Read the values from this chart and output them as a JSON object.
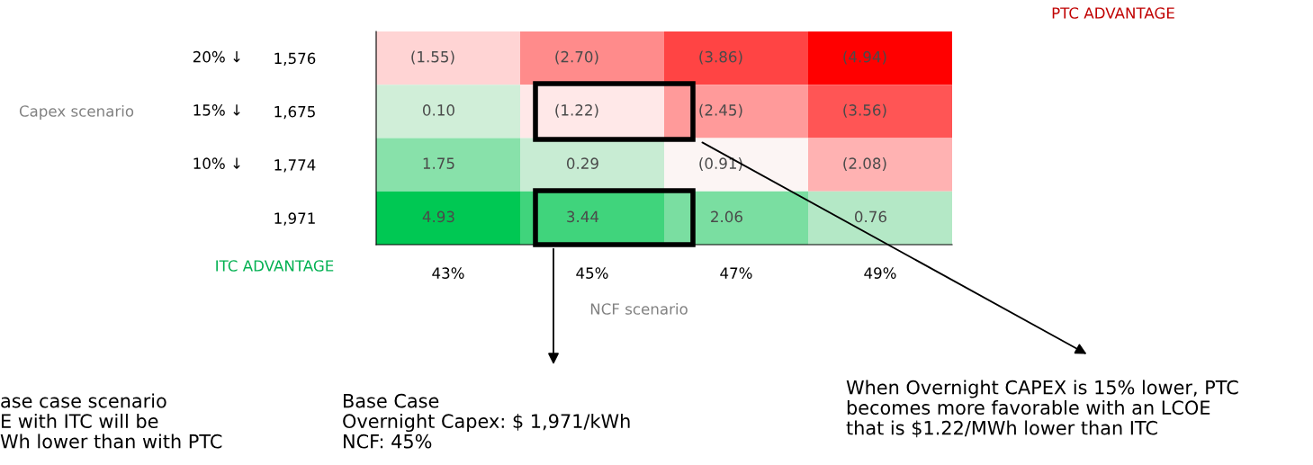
{
  "chart_data": {
    "type": "heatmap",
    "xlabel": "NCF scenario",
    "categories": [
      "43%",
      "45%",
      "47%",
      "49%"
    ],
    "y_categories": [
      "1,576",
      "1,675",
      "1,774",
      "1,971"
    ],
    "y2_categories": [
      "20% ↓",
      "15% ↓",
      "10% ↓",
      null
    ],
    "cells": [
      [
        -1.55,
        -2.7,
        -3.86,
        -4.94
      ],
      [
        0.1,
        -1.22,
        -2.45,
        -3.56
      ],
      [
        1.75,
        0.29,
        -0.91,
        -2.08
      ],
      [
        4.93,
        3.44,
        2.06,
        0.76
      ]
    ],
    "cell_labels": [
      [
        "(1.55)",
        "(2.70)",
        "(3.86)",
        "(4.94)"
      ],
      [
        "0.10",
        "(1.22)",
        "(2.45)",
        "(3.56)"
      ],
      [
        "1.75",
        "0.29",
        "(0.91)",
        "(2.08)"
      ],
      [
        "4.93",
        "3.44",
        "2.06",
        "0.76"
      ]
    ],
    "annotations": [
      "PTC ADVANTAGE",
      "ITC ADVANTAGE",
      "Capex scenario",
      "Base Case\nOvernight Capex: $ 1,971/kWh\nNCF: 45%",
      "When Overnight CAPEX is 15% lower, PTC\nbecomes more favorable with an LCOE\nthat is $1.22/MWh lower than ITC",
      "ase case scenario\nE with ITC will be\nWh lower than with PTC"
    ]
  }
}
